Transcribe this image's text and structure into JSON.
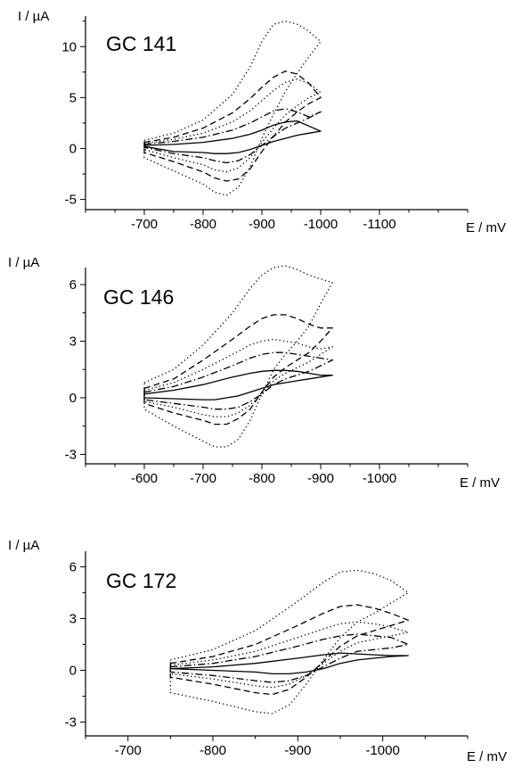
{
  "chart_data": [
    {
      "type": "line",
      "title": "GC 141",
      "xlabel": "E / mV",
      "ylabel": "I / µA",
      "xlim": [
        -600,
        -1250
      ],
      "ylim": [
        -6,
        13
      ],
      "x_ticks": [
        -700,
        -800,
        -900,
        -1000,
        -1100
      ],
      "y_ticks": [
        -5,
        0,
        5,
        10
      ],
      "x_tick_labels": [
        "-700",
        "-800",
        "-900",
        "-1000",
        "-1100"
      ],
      "y_tick_labels": [
        "-5",
        "0",
        "5",
        "10"
      ],
      "grid": false,
      "series": [
        {
          "line_style": "solid",
          "x": [
            -700,
            -750,
            -800,
            -850,
            -880,
            -900,
            -920,
            -940,
            -960,
            -980,
            -1000,
            -980,
            -960,
            -940,
            -920,
            -900,
            -880,
            -860,
            -840,
            -820,
            -800,
            -750,
            -700
          ],
          "y": [
            0.3,
            0.4,
            0.6,
            1.0,
            1.4,
            1.8,
            2.3,
            2.6,
            2.7,
            2.2,
            1.7,
            1.5,
            1.3,
            1.0,
            0.7,
            0.3,
            -0.1,
            -0.4,
            -0.5,
            -0.5,
            -0.4,
            -0.3,
            0.2
          ]
        },
        {
          "line_style": "dashdot",
          "x": [
            -700,
            -750,
            -800,
            -850,
            -880,
            -900,
            -920,
            -940,
            -960,
            -980,
            -1000,
            -980,
            -960,
            -940,
            -920,
            -900,
            -880,
            -860,
            -840,
            -820,
            -800,
            -750,
            -700
          ],
          "y": [
            0.4,
            0.7,
            1.1,
            1.8,
            2.5,
            3.1,
            3.7,
            3.9,
            3.6,
            3.1,
            3.6,
            3.0,
            2.5,
            2.0,
            1.2,
            0.3,
            -0.6,
            -1.2,
            -1.4,
            -1.2,
            -0.9,
            -0.5,
            0.1
          ]
        },
        {
          "line_style": "dotted",
          "x": [
            -700,
            -750,
            -800,
            -850,
            -880,
            -900,
            -920,
            -940,
            -960,
            -980,
            -1000,
            -980,
            -960,
            -940,
            -920,
            -900,
            -880,
            -860,
            -840,
            -820,
            -800,
            -750,
            -700
          ],
          "y": [
            0.5,
            0.9,
            1.5,
            2.6,
            3.7,
            4.7,
            5.7,
            6.5,
            6.8,
            6.4,
            5.5,
            5.0,
            4.2,
            3.3,
            2.0,
            0.6,
            -0.9,
            -1.9,
            -2.3,
            -2.1,
            -1.6,
            -0.9,
            -0.1
          ]
        },
        {
          "line_style": "dashed",
          "x": [
            -700,
            -750,
            -800,
            -850,
            -880,
            -900,
            -920,
            -940,
            -960,
            -980,
            -1000,
            -980,
            -960,
            -940,
            -920,
            -900,
            -880,
            -860,
            -840,
            -820,
            -800,
            -750,
            -700
          ],
          "y": [
            0.6,
            1.1,
            2.0,
            3.5,
            4.9,
            6.0,
            7.0,
            7.6,
            7.3,
            6.4,
            5.0,
            4.4,
            3.6,
            2.6,
            1.2,
            -0.3,
            -2.0,
            -3.0,
            -3.2,
            -2.9,
            -2.3,
            -1.3,
            -0.4
          ]
        },
        {
          "line_style": "dotted",
          "x": [
            -700,
            -750,
            -800,
            -850,
            -880,
            -900,
            -920,
            -940,
            -960,
            -980,
            -1000,
            -980,
            -960,
            -940,
            -920,
            -900,
            -880,
            -860,
            -840,
            -820,
            -800,
            -750,
            -700
          ],
          "y": [
            0.8,
            1.5,
            2.8,
            5.3,
            8.0,
            10.5,
            12.2,
            12.5,
            12.2,
            11.5,
            10.5,
            9.0,
            7.4,
            5.6,
            3.4,
            1.0,
            -1.8,
            -3.8,
            -4.6,
            -4.3,
            -3.5,
            -2.2,
            -0.9
          ]
        }
      ]
    },
    {
      "type": "line",
      "title": "GC 146",
      "xlabel": "E / mV",
      "ylabel": "I / µA",
      "xlim": [
        -500,
        -1150
      ],
      "ylim": [
        -3.5,
        6.9
      ],
      "x_ticks": [
        -600,
        -700,
        -800,
        -900,
        -1000
      ],
      "y_ticks": [
        -3,
        0,
        3,
        6
      ],
      "x_tick_labels": [
        "-600",
        "-700",
        "-800",
        "-900",
        "-1000"
      ],
      "y_tick_labels": [
        "-3",
        "0",
        "3",
        "6"
      ],
      "grid": false,
      "series": [
        {
          "line_style": "solid",
          "x": [
            -600,
            -650,
            -700,
            -750,
            -780,
            -800,
            -820,
            -840,
            -860,
            -880,
            -900,
            -920,
            -900,
            -880,
            -860,
            -840,
            -820,
            -800,
            -780,
            -760,
            -740,
            -720,
            -700,
            -650,
            -600
          ],
          "y": [
            0.2,
            0.4,
            0.7,
            1.1,
            1.3,
            1.4,
            1.45,
            1.45,
            1.4,
            1.3,
            1.2,
            1.2,
            1.1,
            1.0,
            0.9,
            0.8,
            0.7,
            0.5,
            0.3,
            0.1,
            0.0,
            -0.1,
            -0.1,
            -0.05,
            0.0
          ]
        },
        {
          "line_style": "dashdot",
          "x": [
            -600,
            -650,
            -700,
            -750,
            -780,
            -800,
            -820,
            -840,
            -860,
            -880,
            -900,
            -920,
            -900,
            -880,
            -860,
            -840,
            -820,
            -800,
            -780,
            -760,
            -740,
            -720,
            -700,
            -650,
            -600
          ],
          "y": [
            0.3,
            0.6,
            1.1,
            1.7,
            2.1,
            2.3,
            2.4,
            2.4,
            2.3,
            2.2,
            2.1,
            2.0,
            1.7,
            1.4,
            1.2,
            1.0,
            0.7,
            0.2,
            -0.2,
            -0.5,
            -0.6,
            -0.6,
            -0.5,
            -0.3,
            -0.1
          ]
        },
        {
          "line_style": "dotted",
          "x": [
            -600,
            -650,
            -700,
            -750,
            -780,
            -800,
            -820,
            -840,
            -860,
            -880,
            -900,
            -920,
            -900,
            -880,
            -860,
            -840,
            -820,
            -800,
            -780,
            -760,
            -740,
            -720,
            -700,
            -650,
            -600
          ],
          "y": [
            0.4,
            0.8,
            1.5,
            2.3,
            2.8,
            3.0,
            3.1,
            3.0,
            2.9,
            2.7,
            2.6,
            2.7,
            2.3,
            1.9,
            1.6,
            1.3,
            0.9,
            0.2,
            -0.4,
            -0.8,
            -1.0,
            -1.0,
            -0.9,
            -0.5,
            -0.2
          ]
        },
        {
          "line_style": "dashed",
          "x": [
            -600,
            -650,
            -700,
            -750,
            -780,
            -800,
            -820,
            -840,
            -860,
            -880,
            -900,
            -920,
            -900,
            -880,
            -860,
            -840,
            -820,
            -800,
            -780,
            -760,
            -740,
            -720,
            -700,
            -650,
            -600
          ],
          "y": [
            0.5,
            1.0,
            2.0,
            3.1,
            3.8,
            4.2,
            4.4,
            4.4,
            4.2,
            3.9,
            3.7,
            3.7,
            3.0,
            2.4,
            2.0,
            1.6,
            1.1,
            0.3,
            -0.6,
            -1.1,
            -1.4,
            -1.4,
            -1.2,
            -0.8,
            -0.3
          ]
        },
        {
          "line_style": "dotted",
          "x": [
            -600,
            -650,
            -700,
            -750,
            -780,
            -800,
            -820,
            -840,
            -860,
            -880,
            -900,
            -920,
            -900,
            -880,
            -860,
            -840,
            -820,
            -800,
            -780,
            -760,
            -740,
            -720,
            -700,
            -650,
            -600
          ],
          "y": [
            0.8,
            1.5,
            2.8,
            4.5,
            5.8,
            6.5,
            6.9,
            7.0,
            6.8,
            6.5,
            6.3,
            6.1,
            5.0,
            3.8,
            3.0,
            2.3,
            1.5,
            0.2,
            -1.2,
            -2.2,
            -2.6,
            -2.6,
            -2.3,
            -1.5,
            -0.6
          ]
        }
      ]
    },
    {
      "type": "line",
      "title": "GC 172",
      "xlabel": "E / mV",
      "ylabel": "I / µA",
      "xlim": [
        -650,
        -1100
      ],
      "ylim": [
        -3.8,
        6.9
      ],
      "x_ticks": [
        -700,
        -800,
        -900,
        -1000
      ],
      "y_ticks": [
        -3,
        0,
        3,
        6
      ],
      "x_tick_labels": [
        "-700",
        "-800",
        "-900",
        "-1000"
      ],
      "y_tick_labels": [
        "-3",
        "0",
        "3",
        "6"
      ],
      "grid": false,
      "series": [
        {
          "line_style": "solid",
          "x": [
            -750,
            -800,
            -850,
            -900,
            -930,
            -950,
            -970,
            -990,
            -1010,
            -1030,
            -1010,
            -990,
            -970,
            -950,
            -930,
            -910,
            -890,
            -870,
            -850,
            -800,
            -750
          ],
          "y": [
            0.1,
            0.2,
            0.4,
            0.7,
            0.9,
            1.0,
            0.95,
            0.9,
            0.85,
            0.85,
            0.8,
            0.7,
            0.6,
            0.4,
            0.1,
            -0.1,
            -0.2,
            -0.2,
            -0.1,
            0.0,
            0.1
          ]
        },
        {
          "line_style": "dashdot",
          "x": [
            -750,
            -800,
            -850,
            -900,
            -930,
            -950,
            -970,
            -990,
            -1010,
            -1030,
            -1010,
            -990,
            -970,
            -950,
            -930,
            -910,
            -890,
            -870,
            -850,
            -800,
            -750
          ],
          "y": [
            0.2,
            0.4,
            0.8,
            1.4,
            1.8,
            2.0,
            2.1,
            2.0,
            1.9,
            1.5,
            1.3,
            1.2,
            1.1,
            0.7,
            0.2,
            -0.3,
            -0.6,
            -0.7,
            -0.6,
            -0.3,
            -0.1
          ]
        },
        {
          "line_style": "dotted",
          "x": [
            -750,
            -800,
            -850,
            -900,
            -930,
            -950,
            -970,
            -990,
            -1010,
            -1030,
            -1010,
            -990,
            -970,
            -950,
            -930,
            -910,
            -890,
            -870,
            -850,
            -800,
            -750
          ],
          "y": [
            0.3,
            0.6,
            1.1,
            1.9,
            2.4,
            2.7,
            2.8,
            2.7,
            2.5,
            2.2,
            2.0,
            1.8,
            1.6,
            1.1,
            0.4,
            -0.3,
            -0.8,
            -1.0,
            -0.9,
            -0.5,
            -0.2
          ]
        },
        {
          "line_style": "dashed",
          "x": [
            -750,
            -800,
            -850,
            -900,
            -930,
            -950,
            -970,
            -990,
            -1010,
            -1030,
            -1010,
            -990,
            -970,
            -950,
            -930,
            -910,
            -890,
            -870,
            -850,
            -800,
            -750
          ],
          "y": [
            0.4,
            0.8,
            1.5,
            2.6,
            3.3,
            3.7,
            3.8,
            3.6,
            3.3,
            2.9,
            2.6,
            2.3,
            2.0,
            1.4,
            0.5,
            -0.4,
            -1.1,
            -1.4,
            -1.3,
            -0.8,
            -0.4
          ]
        },
        {
          "line_style": "dotted",
          "x": [
            -750,
            -800,
            -850,
            -900,
            -930,
            -950,
            -970,
            -990,
            -1010,
            -1030,
            -1010,
            -990,
            -970,
            -950,
            -930,
            -910,
            -890,
            -870,
            -850,
            -800,
            -750
          ],
          "y": [
            0.6,
            1.2,
            2.3,
            4.0,
            5.1,
            5.7,
            5.8,
            5.6,
            5.2,
            4.5,
            3.9,
            3.3,
            2.8,
            1.9,
            0.6,
            -0.8,
            -2.0,
            -2.5,
            -2.4,
            -1.8,
            -1.3
          ]
        }
      ]
    }
  ]
}
